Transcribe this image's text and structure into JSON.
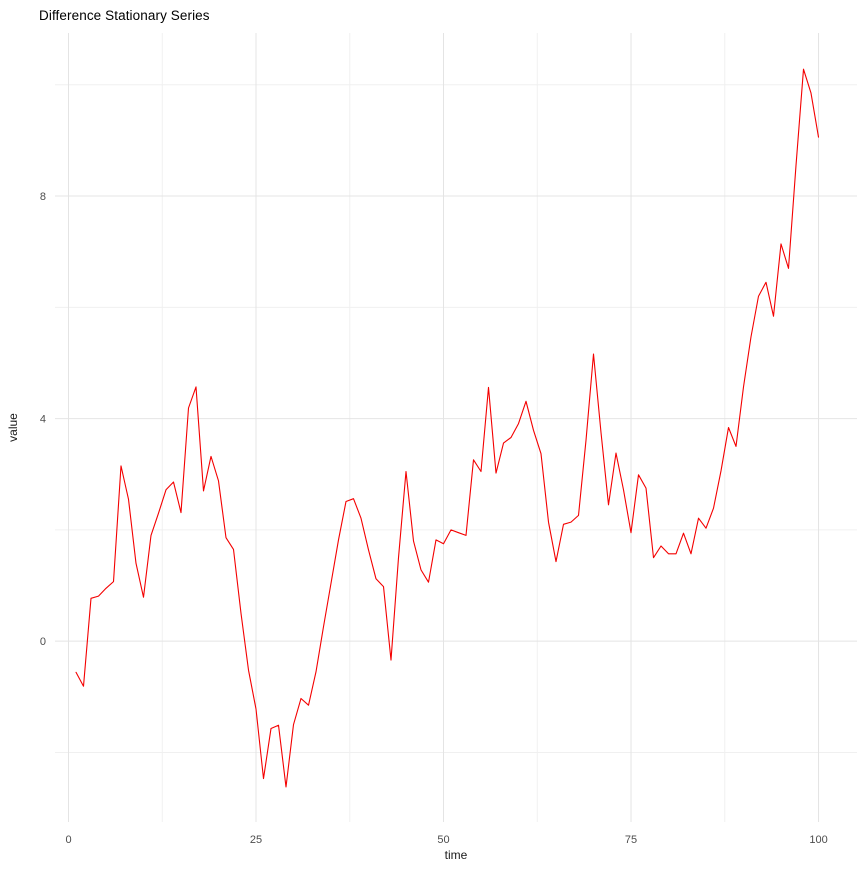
{
  "figure": {
    "title": "Difference Stationary Series"
  },
  "chart_data": {
    "type": "line",
    "title": "Difference Stationary Series",
    "xlabel": "time",
    "ylabel": "value",
    "legend": "none",
    "grid": true,
    "background": "#ffffff",
    "grid_color_major": "#e4e4e4",
    "grid_color_minor": "#f0f0f0",
    "tick_label_color": "#4d4d4d",
    "axis_title_color": "#1a1a1a",
    "series": [
      {
        "name": "value",
        "color": "#f40000",
        "x_start": 1,
        "x_step": 1,
        "values": [
          -0.56,
          -0.81,
          0.77,
          0.81,
          0.95,
          1.07,
          3.15,
          2.55,
          1.4,
          0.79,
          1.9,
          2.3,
          2.72,
          2.86,
          2.31,
          4.19,
          4.57,
          2.7,
          3.32,
          2.88,
          1.86,
          1.65,
          0.5,
          -0.52,
          -1.22,
          -2.47,
          -1.57,
          -1.51,
          -2.62,
          -1.5,
          -1.03,
          -1.15,
          -0.55,
          0.26,
          1.04,
          1.82,
          2.51,
          2.56,
          2.21,
          1.64,
          1.12,
          0.98,
          -0.34,
          1.5,
          3.05,
          1.8,
          1.28,
          1.06,
          1.82,
          1.75,
          2.0,
          1.95,
          1.9,
          3.26,
          3.05,
          4.56,
          3.02,
          3.56,
          3.66,
          3.91,
          4.31,
          3.79,
          3.37,
          2.14,
          1.43,
          2.1,
          2.14,
          2.26,
          3.61,
          5.16,
          3.75,
          2.45,
          3.38,
          2.72,
          1.95,
          2.99,
          2.75,
          1.5,
          1.71,
          1.57,
          1.57,
          1.94,
          1.57,
          2.21,
          2.03,
          2.39,
          3.06,
          3.84,
          3.5,
          4.57,
          5.47,
          6.2,
          6.45,
          5.84,
          7.14,
          6.7,
          8.55,
          10.28,
          9.85,
          9.06
        ]
      }
    ],
    "x_ticks": [
      0,
      25,
      50,
      75,
      100
    ],
    "x_minor_ticks": [
      12.5,
      37.5,
      62.5,
      87.5
    ],
    "y_ticks": [
      0,
      4,
      8
    ],
    "y_minor_ticks": [
      -2,
      2,
      6,
      10
    ],
    "xlim": [
      -1.8,
      105.13
    ],
    "ylim": [
      -3.25,
      10.93
    ]
  }
}
